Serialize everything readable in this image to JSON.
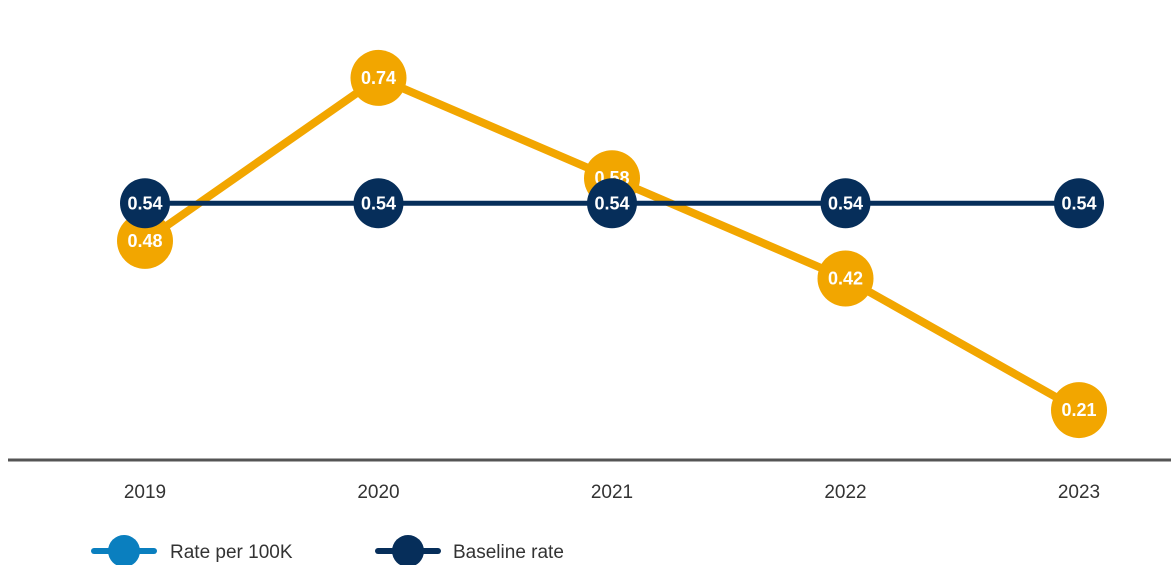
{
  "chart_data": {
    "type": "line",
    "categories": [
      "2019",
      "2020",
      "2021",
      "2022",
      "2023"
    ],
    "series": [
      {
        "name": "Rate per 100K",
        "values": [
          0.48,
          0.74,
          0.58,
          0.42,
          0.21
        ],
        "labels": [
          "0.48",
          "0.74",
          "0.58",
          "0.42",
          "0.21"
        ],
        "color": "#F2A600",
        "legend_swatch_color": "#0A7FBF"
      },
      {
        "name": "Baseline rate",
        "values": [
          0.54,
          0.54,
          0.54,
          0.54,
          0.54
        ],
        "labels": [
          "0.54",
          "0.54",
          "0.54",
          "0.54",
          "0.54"
        ],
        "color": "#062E5A",
        "legend_swatch_color": "#062E5A"
      }
    ],
    "title": "",
    "xlabel": "",
    "ylabel": "",
    "ylim": [
      0.1,
      0.85
    ],
    "grid": false,
    "legend_position": "bottom-left",
    "axis_color": "#555555"
  }
}
